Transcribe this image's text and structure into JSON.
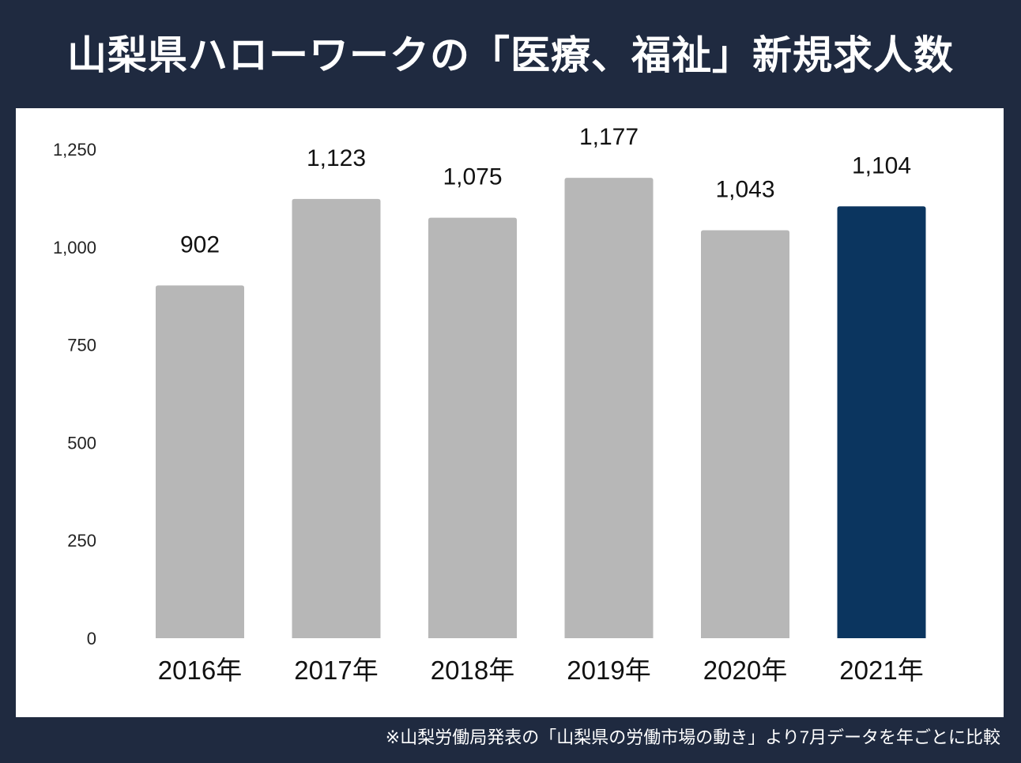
{
  "title": "山梨県ハローワークの「医療、福祉」新規求人数",
  "footer": "※山梨労働局発表の「山梨県の労働市場の動き」より7月データを年ごとに比較",
  "chart_data": {
    "type": "bar",
    "categories": [
      "2016年",
      "2017年",
      "2018年",
      "2019年",
      "2020年",
      "2021年"
    ],
    "values": [
      902,
      1123,
      1075,
      1177,
      1043,
      1104
    ],
    "data_labels": [
      "902",
      "1,123",
      "1,075",
      "1,177",
      "1,043",
      "1,104"
    ],
    "yticks": [
      0,
      250,
      500,
      750,
      1000,
      1250
    ],
    "ytick_labels": [
      "0",
      "250",
      "500",
      "750",
      "1,000",
      "1,250"
    ],
    "ylim": [
      0,
      1250
    ],
    "grid": false,
    "colors": {
      "default": "#b7b7b7",
      "highlight": "#0b355f"
    },
    "highlight_index": 5
  }
}
